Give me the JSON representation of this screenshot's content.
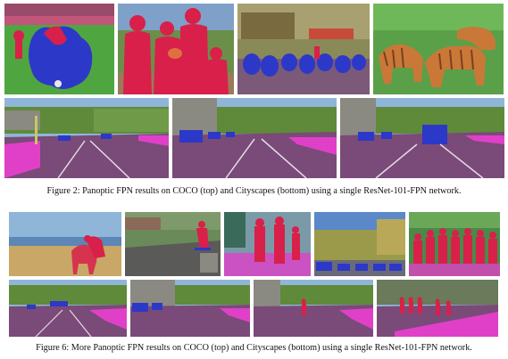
{
  "figure2": {
    "caption": "Figure 2: Panoptic FPN results on COCO (top) and Cityscapes (bottom) using a single ResNet-101-FPN network."
  },
  "figure6": {
    "caption": "Figure 6: More Panoptic FPN results on COCO (top) and Cityscapes (bottom) using a single ResNet-101-FPN network."
  },
  "colors": {
    "grass": "#4fa640",
    "road": "#7a4a78",
    "sidewalk": "#e040c8",
    "person": "#d8204a",
    "car": "#2c38c8",
    "vegetation": "#5f8a3a",
    "sky": "#8fb6d8",
    "building": "#8a8a82",
    "zebra": "#c97838",
    "sand": "#c9a766",
    "water": "#5c86b6"
  },
  "scene_names": [
    "soccer-players-image",
    "family-portrait-image",
    "parked-motorcycles-image",
    "zebras-image",
    "city-street-left-image",
    "city-street-center-image",
    "city-street-right-image",
    "beach-horses-image",
    "skateboarder-image",
    "living-room-players-image",
    "street-traffic-image",
    "group-photo-image",
    "highway-scene-image",
    "suburban-street-image",
    "pedestrian-crossing-image",
    "crowded-sidewalk-image"
  ]
}
